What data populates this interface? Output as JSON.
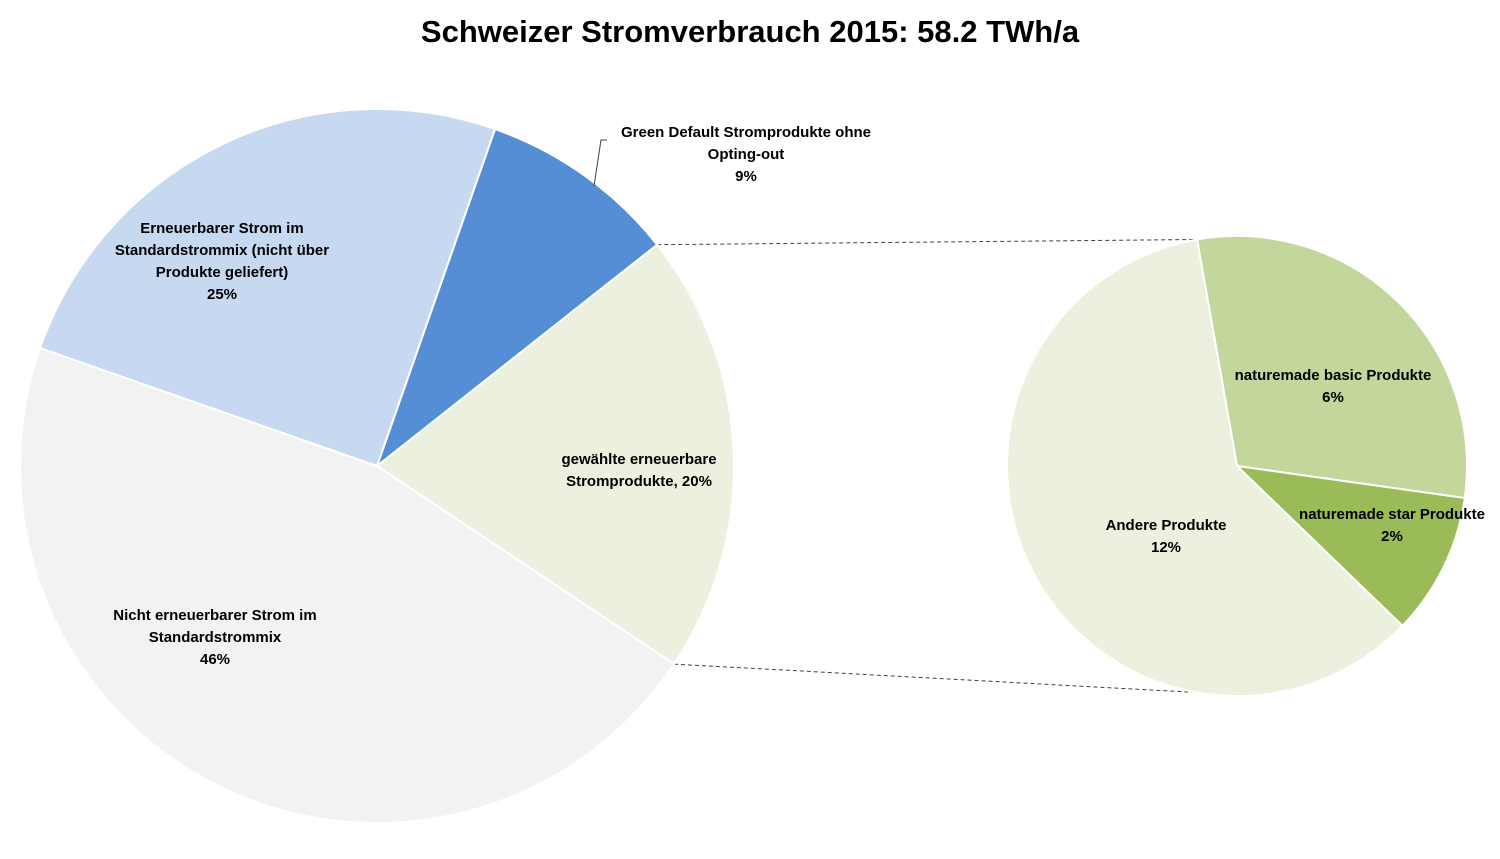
{
  "chart_data": {
    "type": "pie",
    "title": "Schweizer Stromverbrauch 2015: 58.2 TWh/a",
    "main_pie": {
      "slices": [
        {
          "lines": [
            "Green Default Stromprodukte ohne",
            "Opting-out",
            "9%"
          ],
          "value": 9,
          "color": "#558ED5"
        },
        {
          "lines": [
            "gewählte erneuerbare",
            "Stromprodukte, 20%"
          ],
          "value": 20,
          "color": "#EBF1DE"
        },
        {
          "lines": [
            "Nicht erneuerbarer Strom im",
            "Standardstrommix",
            "46%"
          ],
          "value": 46,
          "color": "#F2F2F2"
        },
        {
          "lines": [
            "Erneuerbarer Strom im",
            "Standardstrommix (nicht über",
            "Produkte geliefert)",
            "25%"
          ],
          "value": 25,
          "color": "#C6D9F1"
        }
      ]
    },
    "breakout_pie": {
      "parent": "gewählte erneuerbare Stromprodukte, 20%",
      "slices": [
        {
          "lines": [
            "naturemade basic Produkte",
            "6%"
          ],
          "value": 6,
          "color": "#C3D69B"
        },
        {
          "lines": [
            "naturemade star Produkte",
            "2%"
          ],
          "value": 2,
          "color": "#9BBB59"
        },
        {
          "lines": [
            "Andere Produkte",
            "12%"
          ],
          "value": 12,
          "color": "#EBF1DE"
        }
      ]
    }
  }
}
